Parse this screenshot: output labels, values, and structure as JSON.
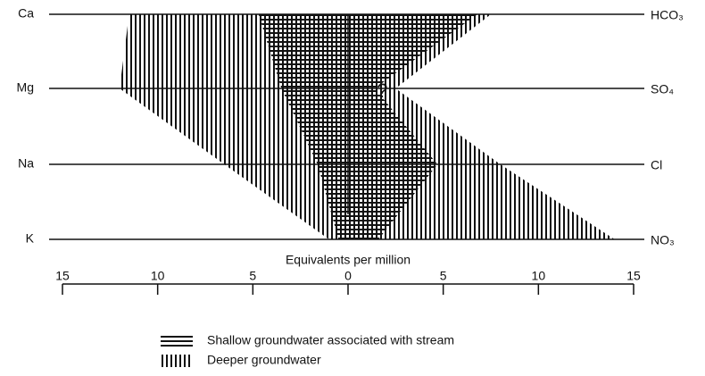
{
  "chart_data": {
    "type": "stiff",
    "cations": [
      "Ca",
      "Mg",
      "Na",
      "K"
    ],
    "anions": [
      "HCO₃",
      "SO₄",
      "Cl",
      "NO₃"
    ],
    "series": [
      {
        "name": "Shallow groundwater associated with stream",
        "pattern": "horizontal",
        "color": "#111111",
        "cations": [
          4.7,
          3.5,
          1.6,
          0.5
        ],
        "anions": [
          6.8,
          1.4,
          4.7,
          1.6
        ]
      },
      {
        "name": "Deeper groundwater",
        "pattern": "vertical",
        "color": "#111111",
        "cations": [
          11.5,
          12,
          6.5,
          1
        ],
        "anions": [
          7.5,
          2.5,
          8,
          14
        ]
      }
    ],
    "xlabel": "Equivalents per million",
    "xlim": [
      -15,
      15
    ],
    "xticks": [
      {
        "value": -15,
        "label": "15"
      },
      {
        "value": -10,
        "label": "10"
      },
      {
        "value": -5,
        "label": "5"
      },
      0,
      5,
      10,
      {
        "value": 15,
        "label": "15"
      }
    ],
    "annotations": [
      {
        "text": "?",
        "row": 1,
        "x": 1.8
      }
    ]
  }
}
